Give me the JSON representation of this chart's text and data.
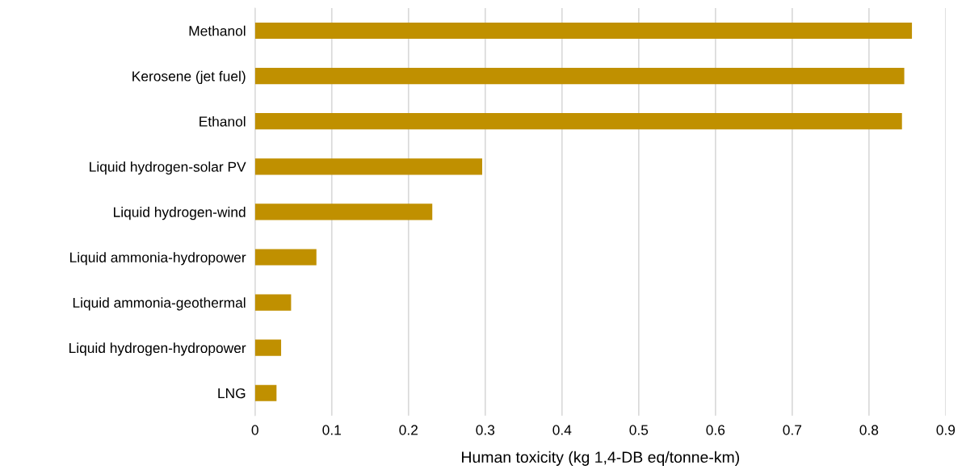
{
  "chart_data": {
    "type": "bar",
    "orientation": "horizontal",
    "xlabel": "Human toxicity (kg 1,4-DB eq/tonne-km)",
    "categories": [
      "Methanol",
      "Kerosene (jet fuel)",
      "Ethanol",
      "Liquid hydrogen-solar PV",
      "Liquid hydrogen-wind",
      "Liquid ammonia-hydropower",
      "Liquid ammonia-geothermal",
      "Liquid hydrogen-hydropower",
      "LNG"
    ],
    "values": [
      0.856,
      0.846,
      0.843,
      0.296,
      0.231,
      0.08,
      0.047,
      0.034,
      0.028
    ],
    "color": "#c09000",
    "xlim": [
      0,
      0.9
    ],
    "xticks": [
      0,
      0.1,
      0.2,
      0.3,
      0.4,
      0.5,
      0.6,
      0.7,
      0.8,
      0.9
    ],
    "grid": "x"
  }
}
